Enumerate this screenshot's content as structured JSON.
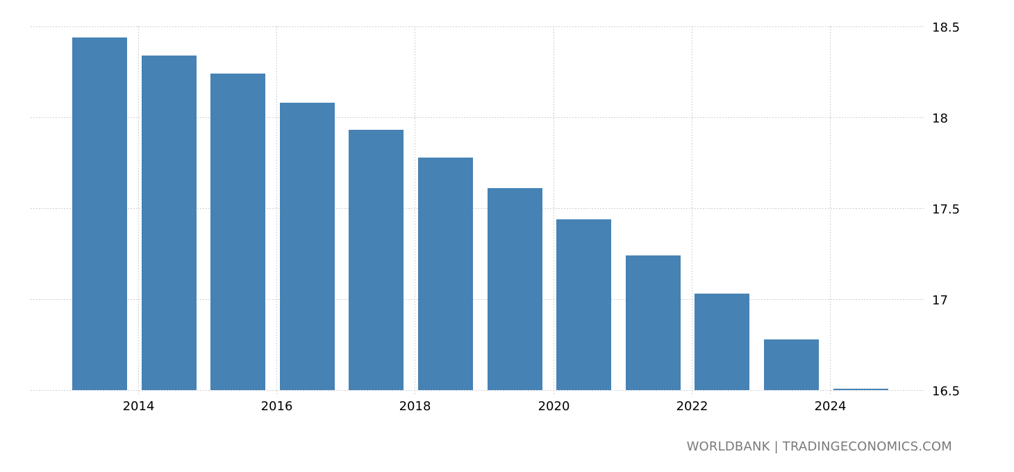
{
  "chart_data": {
    "type": "bar",
    "title": "",
    "xlabel": "",
    "ylabel": "",
    "categories": [
      "2014",
      "2015",
      "2016",
      "2017",
      "2018",
      "2019",
      "2020",
      "2021",
      "2022",
      "2023",
      "2024",
      "2025"
    ],
    "values": [
      18.44,
      18.34,
      18.24,
      18.08,
      17.93,
      17.78,
      17.61,
      17.44,
      17.24,
      17.03,
      16.78,
      16.5
    ],
    "ylim": [
      16.5,
      18.5
    ],
    "y_ticks": [
      "16.5",
      "17",
      "17.5",
      "18",
      "18.5"
    ],
    "x_ticks": [
      "2014",
      "2016",
      "2018",
      "2020",
      "2022",
      "2024"
    ],
    "y_axis_position": "right",
    "grid": true,
    "legend": null,
    "bar_color": "#4682b4"
  },
  "footer": {
    "source": "WORLDBANK | TRADINGECONOMICS.COM"
  }
}
